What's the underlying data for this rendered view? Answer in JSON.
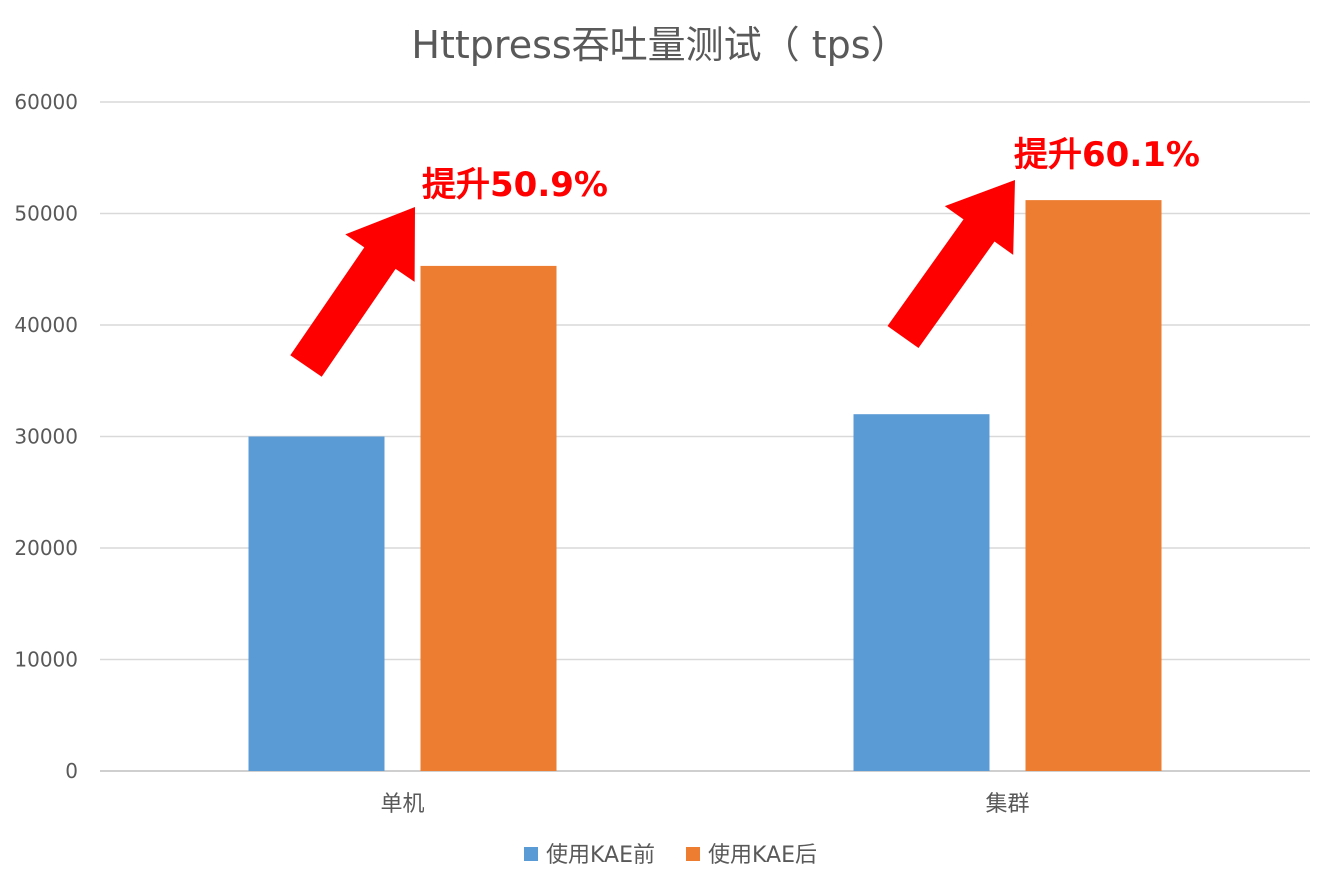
{
  "chart_data": {
    "type": "bar",
    "title": "Httpress吞吐量测试（ tps）",
    "categories": [
      "单机",
      "集群"
    ],
    "series": [
      {
        "name": "使用KAE前",
        "values": [
          30000,
          32000
        ],
        "color": "#5b9bd5"
      },
      {
        "name": "使用KAE后",
        "values": [
          45300,
          51200
        ],
        "color": "#ed7d31"
      }
    ],
    "ylim": [
      0,
      60000
    ],
    "yticks": [
      "0",
      "10000",
      "20000",
      "30000",
      "40000",
      "50000",
      "60000"
    ],
    "grid": true,
    "legend_position": "bottom",
    "annotations": [
      {
        "text": "提升50.9%",
        "category": "单机",
        "color": "#ff0000"
      },
      {
        "text": "提升60.1%",
        "category": "集群",
        "color": "#ff0000"
      }
    ]
  }
}
